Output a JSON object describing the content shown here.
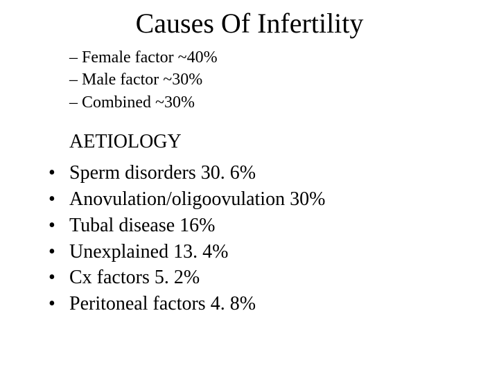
{
  "title": "Causes Of Infertility",
  "factors": [
    "Female factor ~40%",
    "Male factor ~30%",
    "Combined ~30%"
  ],
  "section_heading": "AETIOLOGY",
  "aetiology": [
    "Sperm disorders 30. 6%",
    "Anovulation/oligoovulation 30%",
    "Tubal disease 16%",
    "Unexplained 13. 4%",
    "Cx factors 5. 2%",
    "Peritoneal factors 4. 8%"
  ],
  "colors": {
    "background": "#ffffff",
    "text": "#000000"
  },
  "typography": {
    "title_fontsize": 40,
    "body_fontsize": 28,
    "sublist_fontsize": 24,
    "font_family": "Times New Roman"
  }
}
